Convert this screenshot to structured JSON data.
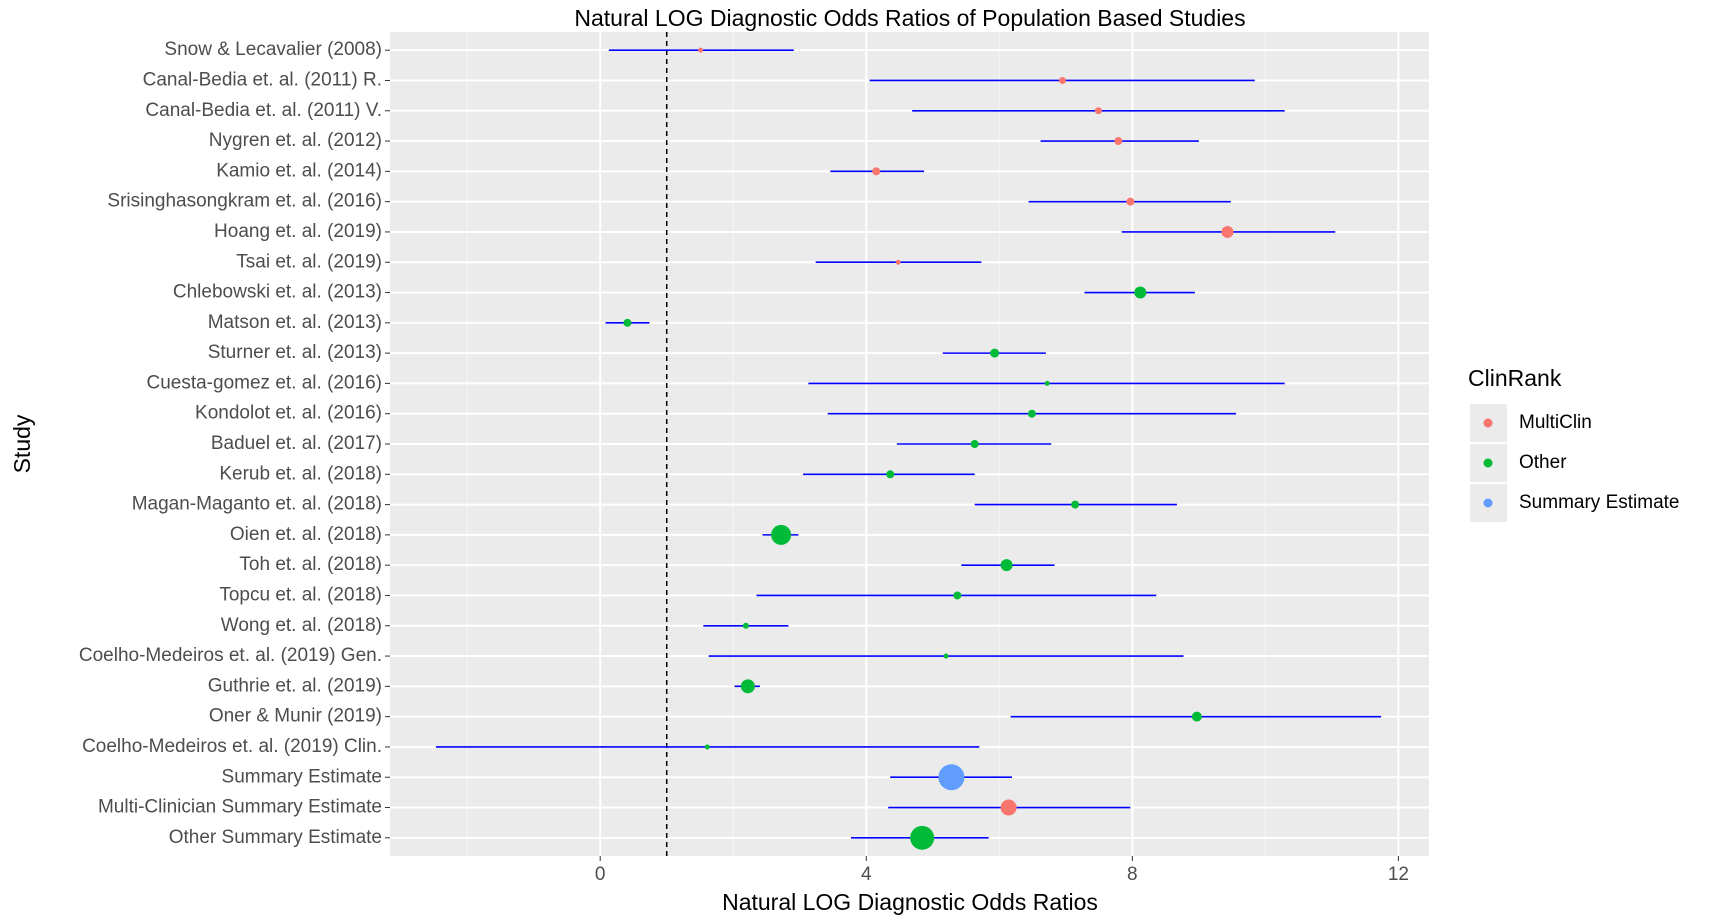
{
  "chart_data": {
    "type": "forest",
    "title": "Natural LOG Diagnostic Odds Ratios of Population Based Studies",
    "xlabel": "Natural LOG Diagnostic Odds Ratios",
    "ylabel": "Study",
    "categories": [
      "Snow & Lecavalier (2008)",
      "Canal-Bedia et. al. (2011) R.",
      "Canal-Bedia et. al. (2011) V.",
      "Nygren et. al. (2012)",
      "Kamio et. al. (2014)",
      "Srisinghasongkram et. al. (2016)",
      "Hoang et. al. (2019)",
      "Tsai et. al. (2019)",
      "Chlebowski et. al. (2013)",
      "Matson et. al. (2013)",
      "Sturner et. al. (2013)",
      "Cuesta-gomez et. al. (2016)",
      "Kondolot et. al. (2016)",
      "Baduel et. al. (2017)",
      "Kerub et. al. (2018)",
      "Magan-Maganto et. al. (2018)",
      "Oien et. al. (2018)",
      "Toh et. al. (2018)",
      "Topcu et. al. (2018)",
      "Wong et. al. (2018)",
      "Coelho-Medeiros et. al. (2019) Gen.",
      "Guthrie et. al. (2019)",
      "Oner & Munir (2019)",
      "Coelho-Medeiros et. al. (2019) Clin.",
      "Summary Estimate",
      "Multi-Clinician Summary Estimate",
      "Other Summary Estimate"
    ],
    "legend_title": "ClinRank",
    "series": [
      {
        "name": "MultiClin",
        "color": "#F8766D",
        "values": [
          1.51,
          6.95,
          7.49,
          7.79,
          4.15,
          7.97,
          9.43,
          4.48,
          null,
          null,
          null,
          null,
          null,
          null,
          null,
          null,
          null,
          null,
          null,
          null,
          null,
          null,
          null,
          null,
          null,
          6.14,
          null
        ],
        "lower": [
          0.13,
          4.05,
          4.69,
          6.62,
          3.46,
          6.44,
          7.84,
          3.24,
          null,
          null,
          null,
          null,
          null,
          null,
          null,
          null,
          null,
          null,
          null,
          null,
          null,
          null,
          null,
          null,
          null,
          4.33,
          null
        ],
        "upper": [
          2.91,
          9.84,
          10.29,
          9.0,
          4.87,
          9.48,
          11.05,
          5.73,
          null,
          null,
          null,
          null,
          null,
          null,
          null,
          null,
          null,
          null,
          null,
          null,
          null,
          null,
          null,
          null,
          null,
          7.97,
          null
        ],
        "weights": [
          2.5,
          3.5,
          3.5,
          4,
          4,
          4,
          6,
          2.5,
          null,
          null,
          null,
          null,
          null,
          null,
          null,
          null,
          null,
          null,
          null,
          null,
          null,
          null,
          null,
          null,
          null,
          8,
          null
        ]
      },
      {
        "name": "Other",
        "color": "#00BA38",
        "values": [
          null,
          null,
          null,
          null,
          null,
          null,
          null,
          null,
          8.12,
          0.41,
          5.93,
          6.72,
          6.49,
          5.63,
          4.36,
          7.14,
          2.72,
          6.11,
          5.37,
          2.19,
          5.2,
          2.22,
          8.97,
          1.61,
          null,
          null,
          4.84
        ],
        "lower": [
          null,
          null,
          null,
          null,
          null,
          null,
          null,
          null,
          7.28,
          0.08,
          5.15,
          3.13,
          3.42,
          4.46,
          3.05,
          5.63,
          2.44,
          5.43,
          2.35,
          1.55,
          1.63,
          2.02,
          6.17,
          -2.47,
          null,
          null,
          3.77
        ],
        "upper": [
          null,
          null,
          null,
          null,
          null,
          null,
          null,
          null,
          8.94,
          0.74,
          6.7,
          10.29,
          9.56,
          6.78,
          5.63,
          8.67,
          2.98,
          6.83,
          8.36,
          2.83,
          8.77,
          2.4,
          11.74,
          5.7,
          null,
          null,
          5.84
        ],
        "weights": [
          null,
          null,
          null,
          null,
          null,
          null,
          null,
          null,
          6,
          4,
          4.5,
          2.5,
          4,
          4,
          4,
          4,
          10,
          6,
          4,
          3,
          2.5,
          7,
          5,
          2.5,
          null,
          null,
          12
        ]
      },
      {
        "name": "Summary Estimate",
        "color": "#619CFF",
        "values": [
          null,
          null,
          null,
          null,
          null,
          null,
          null,
          null,
          null,
          null,
          null,
          null,
          null,
          null,
          null,
          null,
          null,
          null,
          null,
          null,
          null,
          null,
          null,
          null,
          5.28,
          null,
          null
        ],
        "lower": [
          null,
          null,
          null,
          null,
          null,
          null,
          null,
          null,
          null,
          null,
          null,
          null,
          null,
          null,
          null,
          null,
          null,
          null,
          null,
          null,
          null,
          null,
          null,
          null,
          4.36,
          null,
          null
        ],
        "upper": [
          null,
          null,
          null,
          null,
          null,
          null,
          null,
          null,
          null,
          null,
          null,
          null,
          null,
          null,
          null,
          null,
          null,
          null,
          null,
          null,
          null,
          null,
          null,
          null,
          6.19,
          null,
          null
        ],
        "weights": [
          null,
          null,
          null,
          null,
          null,
          null,
          null,
          null,
          null,
          null,
          null,
          null,
          null,
          null,
          null,
          null,
          null,
          null,
          null,
          null,
          null,
          null,
          null,
          null,
          13,
          null,
          null
        ]
      }
    ],
    "interval_color": "#0000FF",
    "refline": 1,
    "xlim": [
      -3.16,
      12.46
    ],
    "xticks": [
      0,
      4,
      8,
      12
    ],
    "minor_xticks": [
      -2,
      2,
      6,
      10
    ],
    "grid": true
  }
}
